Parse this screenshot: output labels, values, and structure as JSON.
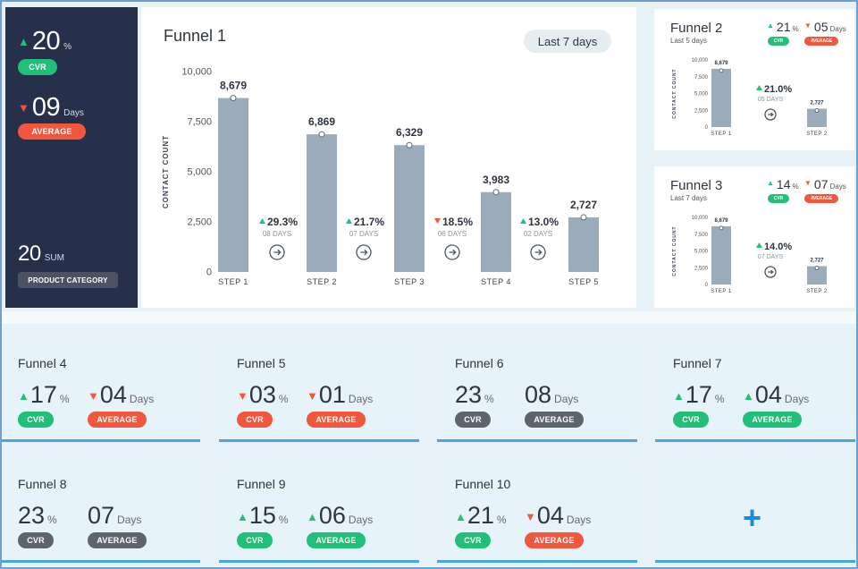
{
  "summary": {
    "cvr_value": "20",
    "cvr_unit": "%",
    "cvr_label": "CVR",
    "days_value": "09",
    "days_unit": "Days",
    "days_label": "AVERAGE",
    "sum_value": "20",
    "sum_unit": "SUM",
    "category_label": "PRODUCT CATEGORY"
  },
  "funnel1": {
    "title": "Funnel 1",
    "range_button": "Last 7 days",
    "ylabel": "CONTACT COUNT",
    "y_ticks": [
      "10,000",
      "7,500",
      "5,000",
      "2,500",
      "0"
    ],
    "chart_data": {
      "type": "bar",
      "categories": [
        "STEP 1",
        "STEP 2",
        "STEP 3",
        "STEP 4",
        "STEP 5"
      ],
      "values": [
        8679,
        6869,
        6329,
        3983,
        2727
      ],
      "value_labels": [
        "8,679",
        "6,869",
        "6,329",
        "3,983",
        "2,727"
      ],
      "ylabel": "CONTACT COUNT",
      "ylim": [
        0,
        10000
      ],
      "transitions": [
        {
          "pct": "29.3%",
          "days": "08 DAYS",
          "direction": "up"
        },
        {
          "pct": "21.7%",
          "days": "07 DAYS",
          "direction": "up"
        },
        {
          "pct": "18.5%",
          "days": "06 DAYS",
          "direction": "down"
        },
        {
          "pct": "13.0%",
          "days": "02 DAYS",
          "direction": "up"
        }
      ]
    }
  },
  "funnel2": {
    "title": "Funnel 2",
    "subtitle": "Last 5 days",
    "cvr_value": "21",
    "cvr_unit": "%",
    "cvr_label": "CVR",
    "days_value": "05",
    "days_unit": "Days",
    "days_label": "AVERAGE",
    "ylabel": "CONTACT COUNT",
    "y_ticks": [
      "10,000",
      "7,500",
      "5,000",
      "2,500",
      "0"
    ],
    "chart_data": {
      "type": "bar",
      "categories": [
        "STEP 1",
        "STEP 2"
      ],
      "values": [
        8679,
        2727
      ],
      "value_labels": [
        "8,679",
        "2,727"
      ],
      "ylim": [
        0,
        10000
      ],
      "transition": {
        "pct": "21.0%",
        "days": "05 DAYS",
        "direction": "up"
      }
    }
  },
  "funnel3": {
    "title": "Funnel 3",
    "subtitle": "Last 7 days",
    "cvr_value": "14",
    "cvr_unit": "%",
    "cvr_label": "CVR",
    "days_value": "07",
    "days_unit": "Days",
    "days_label": "AVERAGE",
    "ylabel": "CONTACT COUNT",
    "y_ticks": [
      "10,000",
      "7,500",
      "5,000",
      "2,500",
      "0"
    ],
    "chart_data": {
      "type": "bar",
      "categories": [
        "STEP 1",
        "STEP 2"
      ],
      "values": [
        8679,
        2727
      ],
      "value_labels": [
        "8,679",
        "2,727"
      ],
      "ylim": [
        0,
        10000
      ],
      "transition": {
        "pct": "14.0%",
        "days": "07 DAYS",
        "direction": "up"
      }
    }
  },
  "tiles": [
    {
      "title": "Funnel 4",
      "cvr": "17",
      "cvr_dir": "up",
      "cvr_pill": "green",
      "days": "04",
      "days_dir": "down",
      "days_pill": "red"
    },
    {
      "title": "Funnel 5",
      "cvr": "03",
      "cvr_dir": "down",
      "cvr_pill": "red",
      "days": "01",
      "days_dir": "down",
      "days_pill": "red"
    },
    {
      "title": "Funnel 6",
      "cvr": "23",
      "cvr_dir": "none",
      "cvr_pill": "gray",
      "days": "08",
      "days_dir": "none",
      "days_pill": "gray"
    },
    {
      "title": "Funnel 7",
      "cvr": "17",
      "cvr_dir": "up",
      "cvr_pill": "green",
      "days": "04",
      "days_dir": "up",
      "days_pill": "green"
    },
    {
      "title": "Funnel 8",
      "cvr": "23",
      "cvr_dir": "none",
      "cvr_pill": "gray",
      "days": "07",
      "days_dir": "none",
      "days_pill": "gray"
    },
    {
      "title": "Funnel 9",
      "cvr": "15",
      "cvr_dir": "up",
      "cvr_pill": "green",
      "days": "06",
      "days_dir": "up",
      "days_pill": "green"
    },
    {
      "title": "Funnel 10",
      "cvr": "21",
      "cvr_dir": "up",
      "cvr_pill": "green",
      "days": "04",
      "days_dir": "down",
      "days_pill": "red"
    }
  ],
  "tile_labels": {
    "cvr_unit": "%",
    "cvr_label": "CVR",
    "days_unit": "Days",
    "days_label": "AVERAGE"
  },
  "add_tile": {
    "icon": "plus-icon"
  },
  "colors": {
    "dark_panel": "#26304a",
    "green": "#21bf77",
    "red": "#f1573d",
    "gray": "#5d646e",
    "bar": "#9aabbb",
    "accent": "#1f8bd6"
  }
}
